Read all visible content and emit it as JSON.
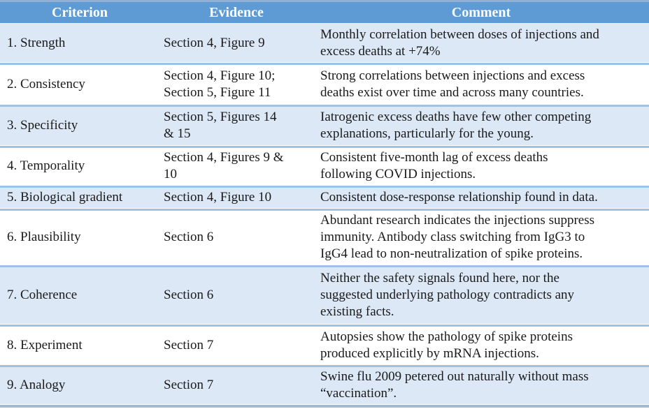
{
  "colors": {
    "header_bg": "#5E9AD3",
    "header_top_strip": "#8FB0D4",
    "row_alt_bg": "#DCE8F6",
    "row_bg": "#FFFFFF",
    "divider": "#9CC2E5",
    "bottom_bar": "#A3B9CF",
    "header_text": "#FFFFFF",
    "body_text": "#1A1A1A"
  },
  "table": {
    "columns": {
      "criterion": "Criterion",
      "evidence": "Evidence",
      "comment": "Comment"
    },
    "rows": [
      {
        "criterion": "1. Strength",
        "evidence": "Section 4, Figure 9",
        "comment": "Monthly correlation between doses of injections and\nexcess deaths at +74%"
      },
      {
        "criterion": "2. Consistency",
        "evidence": "Section 4, Figure 10;\nSection 5, Figure 11",
        "comment": "Strong correlations between injections and excess\ndeaths exist over time and across many countries."
      },
      {
        "criterion": "3. Specificity",
        "evidence": "Section 5, Figures 14\n& 15",
        "comment": "Iatrogenic excess deaths have few other competing\nexplanations, particularly for the young."
      },
      {
        "criterion": "4. Temporality",
        "evidence": "Section 4, Figures 9 &\n10",
        "comment": "Consistent five-month lag of excess deaths\nfollowing COVID injections."
      },
      {
        "criterion": "5. Biological gradient",
        "evidence": "Section 4, Figure 10",
        "comment": "Consistent dose-response relationship found in data."
      },
      {
        "criterion": "6. Plausibility",
        "evidence": "Section 6",
        "comment": "Abundant research indicates the injections suppress\nimmunity. Antibody class switching from IgG3 to\nIgG4 lead to non-neutralization of spike proteins."
      },
      {
        "criterion": "7. Coherence",
        "evidence": "Section 6",
        "comment": "Neither the safety signals found here, nor the\nsuggested underlying pathology contradicts any\nexisting facts."
      },
      {
        "criterion": "8. Experiment",
        "evidence": "Section 7",
        "comment": "Autopsies show the pathology of spike proteins\nproduced explicitly by mRNA injections."
      },
      {
        "criterion": "9. Analogy",
        "evidence": "Section 7",
        "comment": "Swine flu 2009 petered out naturally without mass\n“vaccination”."
      }
    ]
  }
}
